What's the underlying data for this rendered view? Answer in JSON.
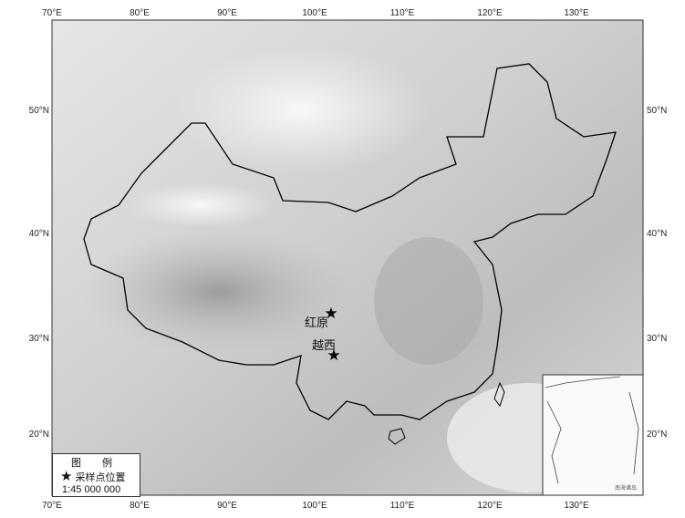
{
  "map": {
    "lon_ticks": [
      "70°E",
      "80°E",
      "90°E",
      "100°E",
      "110°E",
      "120°E",
      "130°E"
    ],
    "lat_ticks": [
      "50°N",
      "40°N",
      "30°N",
      "20°N"
    ],
    "sample_sites": [
      {
        "name": "红原",
        "lon": 102.5,
        "lat": 32.8
      },
      {
        "name": "越西",
        "lon": 102.5,
        "lat": 28.6
      }
    ],
    "inset_label": "南海诸岛",
    "colors": {
      "border": "#000000",
      "terrain_light": "#f2f2f2",
      "terrain_dark": "#8a8a8a"
    }
  },
  "legend": {
    "title": "图 例",
    "symbol_icon": "star-icon",
    "item_label": "采样点位置",
    "scale": "1:45 000 000"
  }
}
